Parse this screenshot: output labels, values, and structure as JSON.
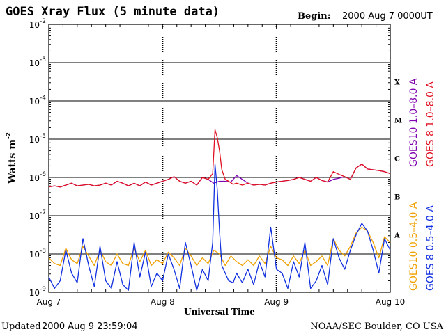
{
  "header": {
    "title": "GOES Xray Flux (5 minute data)",
    "begin_label": "Begin:",
    "begin_value": "2000 Aug 7 0000UT"
  },
  "footer": {
    "updated_label": "Updated",
    "updated_value": "2000 Aug  9 23:59:04",
    "source": "NOAA/SEC Boulder, CO USA"
  },
  "chart_data": {
    "type": "line",
    "title": "GOES Xray Flux (5 minute data)",
    "xlabel": "Universal Time",
    "ylabel": "Watts m",
    "ylabel_exponent": "-2",
    "xlim": [
      0,
      3
    ],
    "ylim_exponent": [
      -9,
      -2
    ],
    "yscale": "log",
    "x_ticks": [
      {
        "x": 0,
        "label": "Aug 7"
      },
      {
        "x": 1,
        "label": "Aug 8"
      },
      {
        "x": 2,
        "label": "Aug 9"
      },
      {
        "x": 3,
        "label": "Aug 10"
      }
    ],
    "y_ticks": [
      {
        "exp": -2,
        "base": "10",
        "power": "-2"
      },
      {
        "exp": -3,
        "base": "10",
        "power": "-3"
      },
      {
        "exp": -4,
        "base": "10",
        "power": "-4"
      },
      {
        "exp": -5,
        "base": "10",
        "power": "-5"
      },
      {
        "exp": -6,
        "base": "10",
        "power": "-6"
      },
      {
        "exp": -7,
        "base": "10",
        "power": "-7"
      },
      {
        "exp": -8,
        "base": "10",
        "power": "-8"
      },
      {
        "exp": -9,
        "base": "10",
        "power": "-9"
      }
    ],
    "flare_classes": [
      {
        "label": "X",
        "exp_center": -3.5
      },
      {
        "label": "M",
        "exp_center": -4.5
      },
      {
        "label": "C",
        "exp_center": -5.5
      },
      {
        "label": "B",
        "exp_center": -6.5
      },
      {
        "label": "A",
        "exp_center": -7.5
      }
    ],
    "grid_exponents": [
      -3,
      -4,
      -5,
      -6,
      -7,
      -8
    ],
    "legend": [
      {
        "text": "GOES10 1.0–8.0 A",
        "color": "#8000b0"
      },
      {
        "text": "GOES 8 1.0–8.0 A",
        "color": "#e01020"
      },
      {
        "text": "GOES10 0.5–4.0 A",
        "color": "#f0a000"
      },
      {
        "text": "GOES 8 0.5–4.0 A",
        "color": "#1030e0"
      }
    ],
    "series": [
      {
        "name": "GOES10 1.0–8.0 A",
        "color": "#8000b0",
        "x": [
          0,
          0.05,
          0.1,
          0.15,
          0.2,
          0.25,
          0.3,
          0.35,
          0.4,
          0.45,
          0.5,
          0.55,
          0.6,
          0.65,
          0.7,
          0.75,
          0.8,
          0.85,
          0.9,
          0.95,
          1.0,
          1.05,
          1.1,
          1.15,
          1.2,
          1.25,
          1.3,
          1.35,
          1.4,
          1.45,
          1.5,
          1.55,
          1.6,
          1.65,
          1.7,
          1.75,
          1.8,
          1.85,
          1.9,
          1.95,
          2.0,
          2.05,
          2.1,
          2.15,
          2.2,
          2.25,
          2.3,
          2.35,
          2.4,
          2.45,
          2.5,
          2.55,
          2.6,
          2.65,
          2.7,
          2.75,
          2.8,
          2.85,
          2.9,
          2.95,
          3.0
        ],
        "log_y": [
          -6.25,
          -6.22,
          -6.25,
          -6.2,
          -6.15,
          -6.22,
          -6.2,
          -6.18,
          -6.22,
          -6.2,
          -6.15,
          -6.2,
          -6.1,
          -6.15,
          -6.22,
          -6.15,
          -6.22,
          -6.12,
          -6.2,
          -6.15,
          -6.1,
          -6.05,
          -5.98,
          -6.1,
          -6.15,
          -6.1,
          -6.2,
          -6.0,
          -6.05,
          -6.15,
          -6.1,
          -6.1,
          -6.12,
          -5.95,
          -6.05,
          -6.15,
          -6.2,
          -6.18,
          -6.2,
          -6.15,
          -6.12,
          -6.1,
          -6.08,
          -6.05,
          -6.0,
          -6.05,
          -6.1,
          -6.0,
          -6.08,
          -6.12,
          -6.05,
          -6.02,
          -5.98,
          -6.05,
          -5.75,
          -5.65,
          -5.78,
          -5.8,
          -5.82,
          -5.85,
          -5.9
        ]
      },
      {
        "name": "GOES 8 1.0–8.0 A",
        "color": "#e01020",
        "x": [
          0,
          0.05,
          0.1,
          0.15,
          0.2,
          0.25,
          0.3,
          0.35,
          0.4,
          0.45,
          0.5,
          0.55,
          0.6,
          0.65,
          0.7,
          0.75,
          0.8,
          0.85,
          0.9,
          0.95,
          1.0,
          1.05,
          1.1,
          1.15,
          1.2,
          1.25,
          1.3,
          1.35,
          1.4,
          1.44,
          1.46,
          1.48,
          1.5,
          1.52,
          1.55,
          1.58,
          1.62,
          1.65,
          1.7,
          1.75,
          1.8,
          1.85,
          1.9,
          1.95,
          2.0,
          2.05,
          2.1,
          2.15,
          2.2,
          2.25,
          2.3,
          2.35,
          2.4,
          2.45,
          2.5,
          2.55,
          2.6,
          2.65,
          2.7,
          2.75,
          2.8,
          2.85,
          2.9,
          2.95,
          3.0
        ],
        "log_y": [
          -6.25,
          -6.22,
          -6.25,
          -6.2,
          -6.15,
          -6.22,
          -6.2,
          -6.18,
          -6.22,
          -6.2,
          -6.15,
          -6.2,
          -6.1,
          -6.15,
          -6.22,
          -6.15,
          -6.22,
          -6.12,
          -6.2,
          -6.15,
          -6.1,
          -6.05,
          -5.98,
          -6.1,
          -6.15,
          -6.1,
          -6.2,
          -6.0,
          -6.05,
          -5.9,
          -4.75,
          -4.95,
          -5.3,
          -5.8,
          -6.05,
          -6.1,
          -6.18,
          -6.15,
          -6.2,
          -6.15,
          -6.2,
          -6.18,
          -6.2,
          -6.15,
          -6.12,
          -6.1,
          -6.08,
          -6.05,
          -6.0,
          -6.05,
          -6.1,
          -6.0,
          -6.08,
          -6.12,
          -5.85,
          -5.92,
          -5.98,
          -6.05,
          -5.75,
          -5.65,
          -5.78,
          -5.8,
          -5.82,
          -5.85,
          -5.9
        ]
      },
      {
        "name": "GOES10 0.5–4.0 A",
        "color": "#f0a000",
        "x": [
          0,
          0.05,
          0.1,
          0.15,
          0.2,
          0.25,
          0.3,
          0.35,
          0.4,
          0.45,
          0.5,
          0.55,
          0.6,
          0.65,
          0.7,
          0.75,
          0.8,
          0.85,
          0.9,
          0.95,
          1.0,
          1.05,
          1.1,
          1.15,
          1.2,
          1.25,
          1.3,
          1.35,
          1.4,
          1.45,
          1.5,
          1.55,
          1.6,
          1.65,
          1.7,
          1.75,
          1.8,
          1.85,
          1.9,
          1.95,
          2.0,
          2.05,
          2.1,
          2.15,
          2.2,
          2.25,
          2.3,
          2.35,
          2.4,
          2.45,
          2.5,
          2.55,
          2.6,
          2.65,
          2.7,
          2.75,
          2.8,
          2.85,
          2.9,
          2.95,
          3.0
        ],
        "log_y": [
          -8.1,
          -8.25,
          -8.3,
          -7.85,
          -8.15,
          -8.25,
          -7.8,
          -8.05,
          -8.3,
          -7.9,
          -8.2,
          -8.3,
          -8.0,
          -8.25,
          -8.3,
          -7.85,
          -8.2,
          -7.9,
          -8.3,
          -8.15,
          -8.25,
          -7.95,
          -8.1,
          -8.3,
          -7.85,
          -8.05,
          -8.3,
          -8.1,
          -8.25,
          -7.9,
          -8.0,
          -8.3,
          -8.05,
          -8.2,
          -8.3,
          -8.15,
          -8.3,
          -8.05,
          -8.25,
          -7.8,
          -8.1,
          -8.15,
          -8.3,
          -8.05,
          -8.25,
          -7.9,
          -8.3,
          -8.2,
          -8.05,
          -8.3,
          -7.6,
          -7.9,
          -8.05,
          -7.8,
          -7.45,
          -7.3,
          -7.4,
          -7.7,
          -8.1,
          -7.55,
          -7.7
        ]
      },
      {
        "name": "GOES 8 0.5–4.0 A",
        "color": "#1030e0",
        "x": [
          0,
          0.05,
          0.1,
          0.15,
          0.2,
          0.25,
          0.3,
          0.35,
          0.4,
          0.45,
          0.5,
          0.55,
          0.6,
          0.65,
          0.7,
          0.75,
          0.8,
          0.85,
          0.9,
          0.95,
          1.0,
          1.05,
          1.1,
          1.15,
          1.2,
          1.25,
          1.3,
          1.35,
          1.4,
          1.44,
          1.46,
          1.48,
          1.5,
          1.52,
          1.55,
          1.58,
          1.62,
          1.65,
          1.7,
          1.75,
          1.8,
          1.85,
          1.9,
          1.95,
          2.0,
          2.05,
          2.1,
          2.15,
          2.2,
          2.25,
          2.3,
          2.35,
          2.4,
          2.45,
          2.5,
          2.55,
          2.6,
          2.65,
          2.7,
          2.75,
          2.8,
          2.85,
          2.9,
          2.95,
          3.0
        ],
        "log_y": [
          -8.6,
          -8.9,
          -8.7,
          -7.9,
          -8.5,
          -8.75,
          -7.6,
          -8.3,
          -8.85,
          -7.8,
          -8.7,
          -8.9,
          -8.2,
          -8.8,
          -8.95,
          -7.7,
          -8.6,
          -7.95,
          -8.85,
          -8.5,
          -8.7,
          -8.0,
          -8.4,
          -8.9,
          -7.7,
          -8.3,
          -8.95,
          -8.4,
          -8.7,
          -7.7,
          -5.65,
          -6.3,
          -7.4,
          -8.3,
          -8.5,
          -8.7,
          -8.75,
          -8.5,
          -8.75,
          -8.4,
          -8.8,
          -8.2,
          -8.6,
          -7.3,
          -8.4,
          -8.5,
          -8.9,
          -8.2,
          -8.6,
          -7.7,
          -8.9,
          -8.7,
          -8.3,
          -8.8,
          -7.6,
          -8.1,
          -8.4,
          -7.9,
          -7.5,
          -7.2,
          -7.4,
          -7.9,
          -8.5,
          -7.6,
          -7.9
        ]
      }
    ]
  }
}
